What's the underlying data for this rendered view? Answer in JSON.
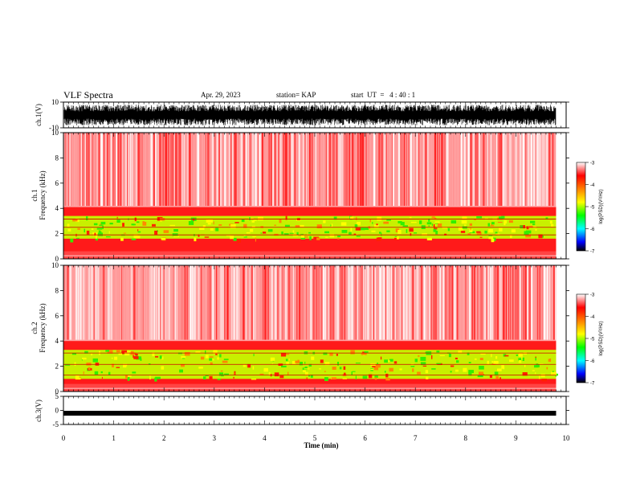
{
  "header": {
    "title": "VLF Spectra",
    "date": "Apr. 29, 2023",
    "station": "station= KAP",
    "start": "start  UT  =   4 : 40 : 1"
  },
  "colorbar": {
    "label": "log(PSD)(V²/Hz)",
    "ticks": [
      "-3",
      "-4",
      "-5",
      "-6",
      "-7"
    ],
    "colors": [
      "#ffffff",
      "#ff0000",
      "#ffff00",
      "#00ff00",
      "#00ffff",
      "#0000ff",
      "#000000"
    ]
  },
  "chart_data": [
    {
      "type": "line",
      "name": "ch1-waveform",
      "ylabel": "ch.1(V)",
      "ylim": [
        -10,
        10
      ],
      "yticks": [
        "10",
        "-10"
      ],
      "xlim": [
        0,
        10
      ],
      "x": [
        0,
        1,
        2,
        3,
        4,
        5,
        6,
        7,
        8,
        9,
        9.8
      ],
      "y_envelope_max": [
        8,
        8,
        8,
        8,
        8,
        8,
        8,
        8,
        8,
        8,
        8
      ],
      "y_envelope_min": [
        -8,
        -8,
        -8,
        -8,
        -8,
        -8,
        -8,
        -8,
        -8,
        -8,
        -8
      ],
      "data_end_min": 9.8
    },
    {
      "type": "heatmap",
      "name": "ch1-spectrogram",
      "ylabel_line1": "ch.1",
      "ylabel_line2": "Frequency (kHz)",
      "ylim": [
        0,
        10
      ],
      "yticks": [
        "0",
        "2",
        "4",
        "6",
        "8",
        "10"
      ],
      "xlim": [
        0,
        10
      ],
      "data_end_min": 9.8,
      "green_band_khz": [
        1.6,
        3.4
      ]
    },
    {
      "type": "heatmap",
      "name": "ch2-spectrogram",
      "ylabel_line1": "ch.2",
      "ylabel_line2": "Frequency (kHz)",
      "ylim": [
        0,
        10
      ],
      "yticks": [
        "0",
        "2",
        "4",
        "6",
        "8",
        "10"
      ],
      "xlim": [
        0,
        10
      ],
      "data_end_min": 9.8,
      "green_band_khz": [
        1.0,
        3.3
      ]
    },
    {
      "type": "line",
      "name": "ch3-waveform",
      "ylabel": "ch.3(V)",
      "ylim": [
        -5,
        5
      ],
      "yticks": [
        "5",
        "0",
        "-5"
      ],
      "xlim": [
        0,
        10
      ],
      "x": [
        0,
        9.8
      ],
      "y": [
        -1,
        -1
      ],
      "data_end_min": 9.8
    }
  ],
  "xaxis": {
    "label": "Time  (min)",
    "ticks": [
      "0",
      "1",
      "2",
      "3",
      "4",
      "5",
      "6",
      "7",
      "8",
      "9",
      "10"
    ]
  }
}
